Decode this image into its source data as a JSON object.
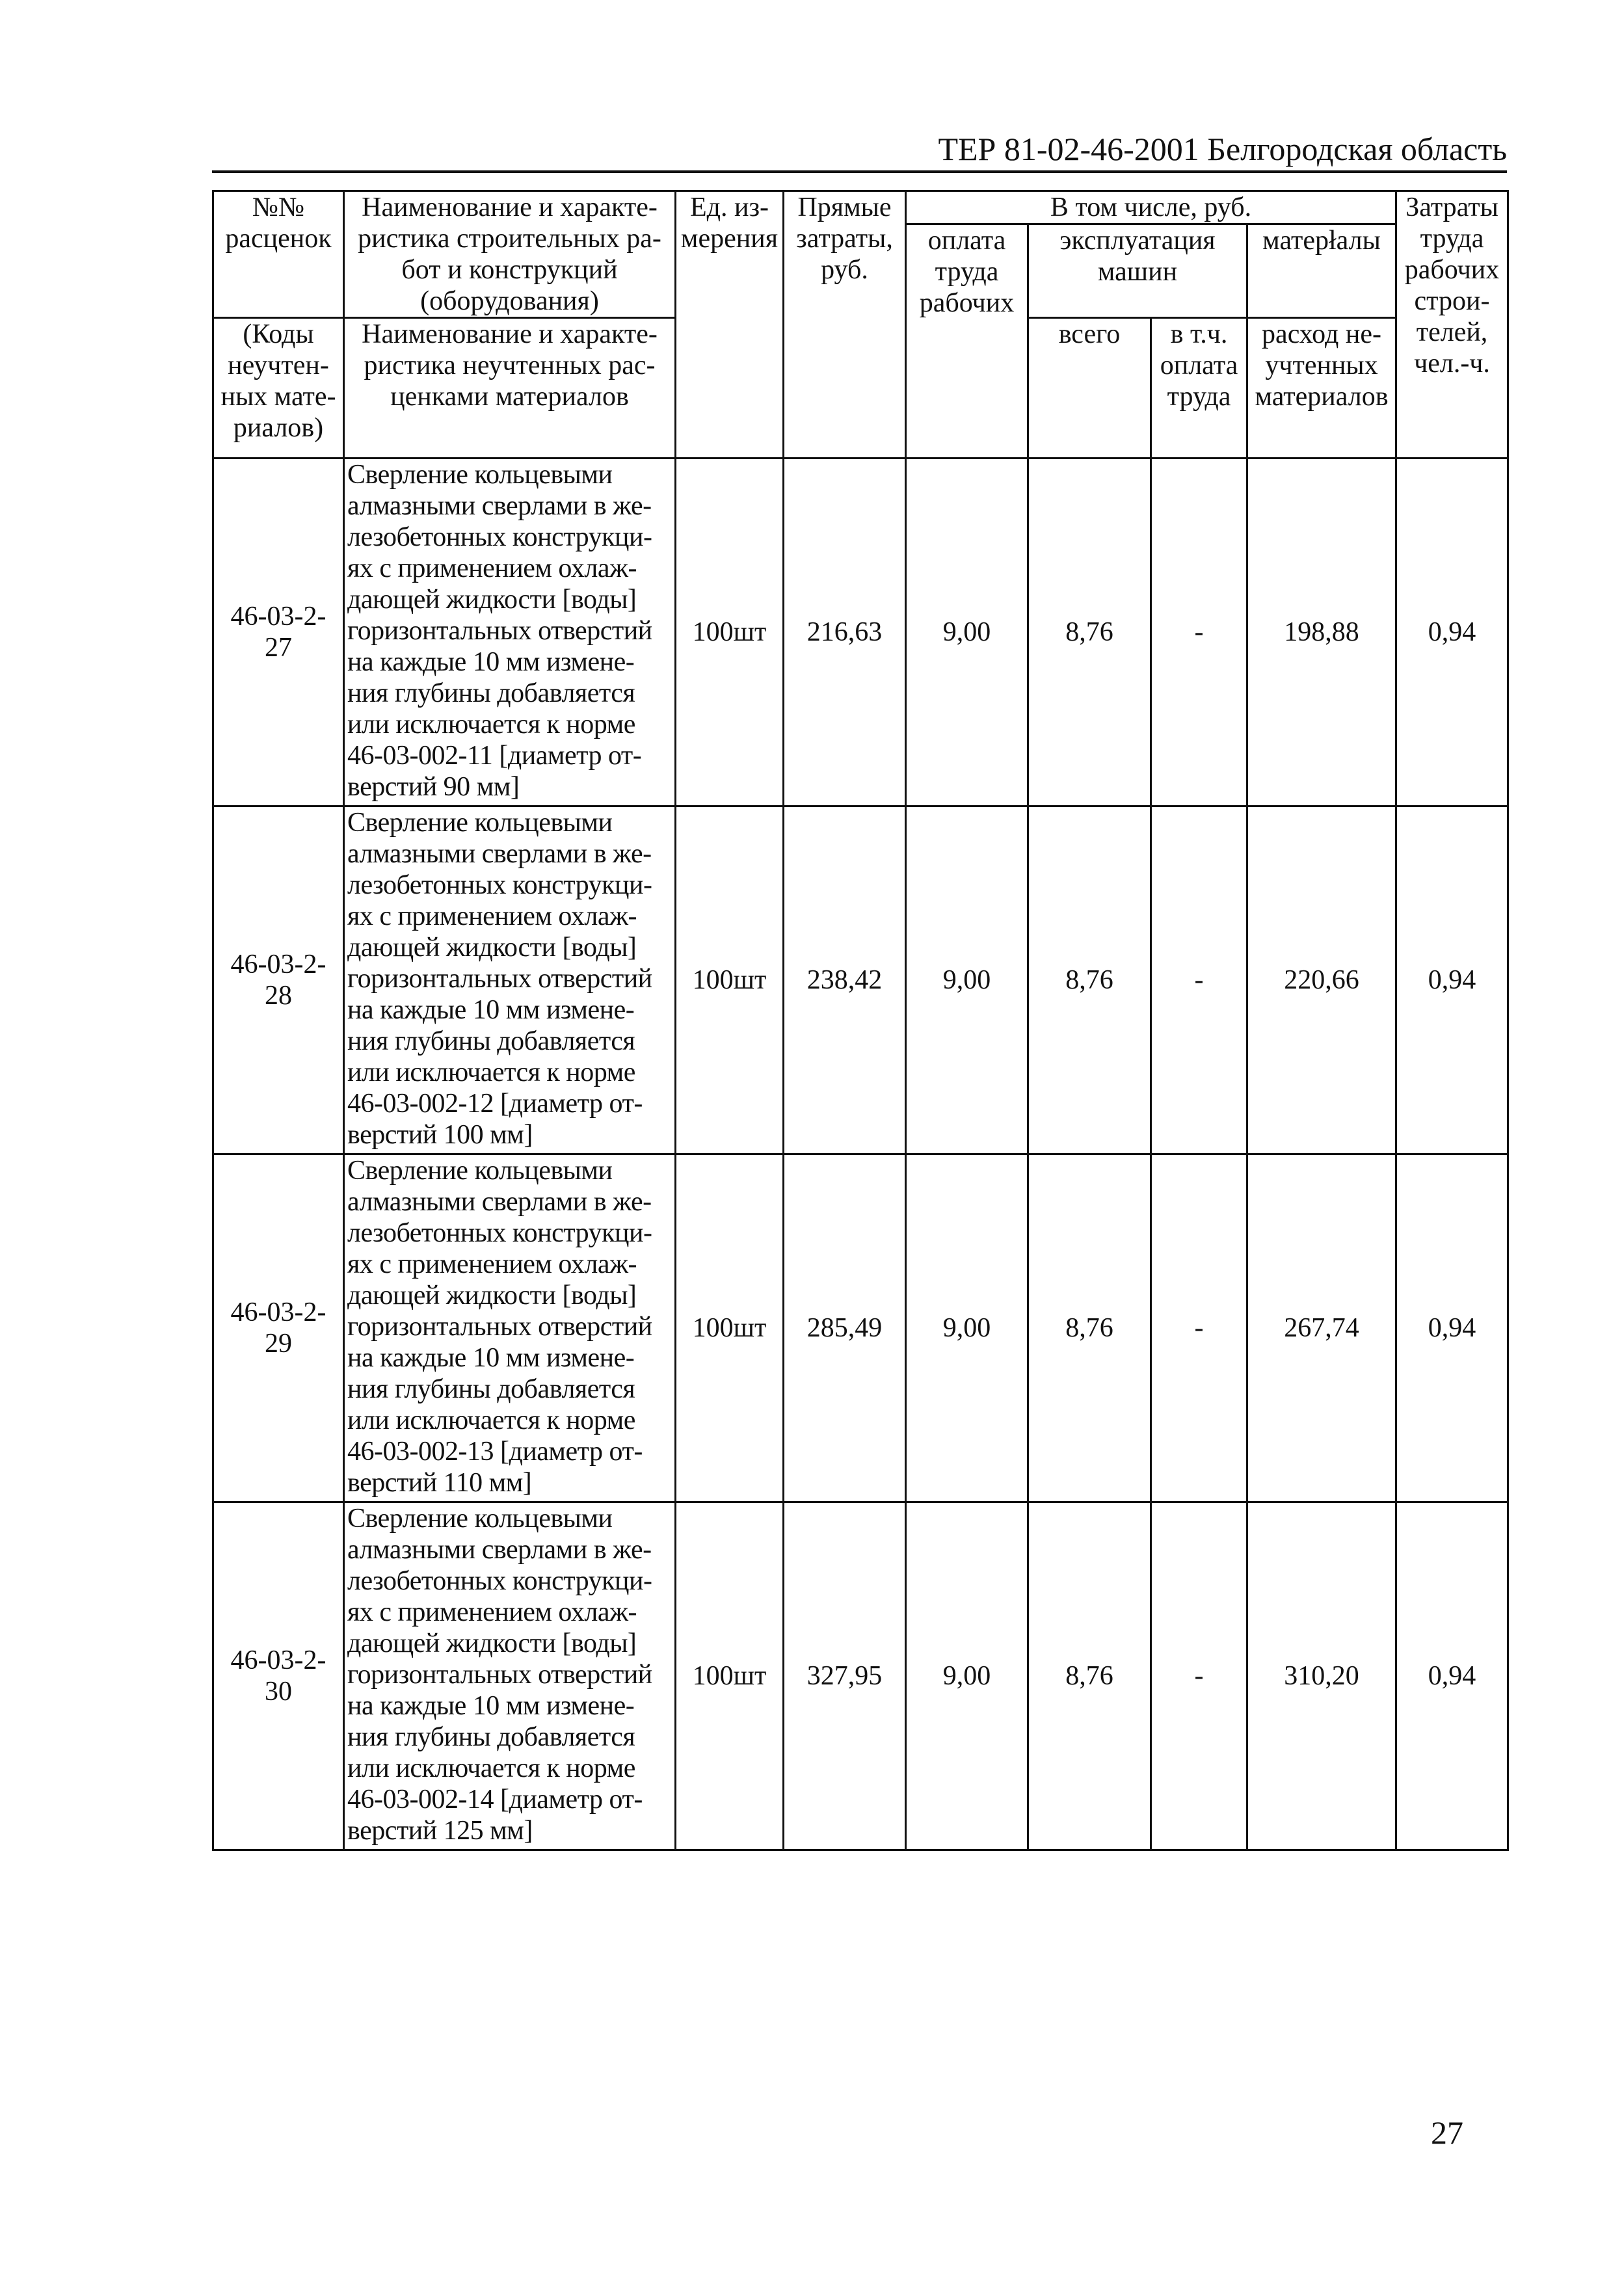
{
  "header": {
    "title": "ТЕР 81-02-46-2001  Белгородская область"
  },
  "table": {
    "head": {
      "num": "№№\nрасценок",
      "name": "Наименование и характе-\nристика строительных ра-\nбот и конструкций\n(оборудования)",
      "unit": "Ед. из-\nмерения",
      "direct": "Прямые\nзатраты,\nруб.",
      "incl": "В том числе, руб.",
      "labor": "Затраты\nтруда\nрабочих\nстрои-\nтелей,\nчел.-ч.",
      "wages": "оплата\nтруда\nрабочих",
      "machines": "эксплуатация\nмашин",
      "materials": "матерłалы",
      "codes": "(Коды\nнеучтен-\nных мате-\nриалов)",
      "name2": "Наименование и характе-\nристика неучтенных рас-\nценками материалов",
      "total": "всего",
      "incl_wages": "в т.ч.\nоплата\nтруда",
      "unaccounted": "расход не-\nучтенных\nматериалов"
    },
    "rows": [
      {
        "code": "46-03-2-\n27",
        "desc": "Сверление кольцевыми\nалмазными сверлами в же-\nлезобетонных конструкци-\nях с применением охлаж-\nдающей жидкости [воды]\nгоризонтальных отверстий\nна каждые 10 мм измене-\nния глубины добавляется\nили исключается к норме\n46-03-002-11 [диаметр от-\nверстий 90 мм]",
        "unit": "100шт",
        "direct": "216,63",
        "wages": "9,00",
        "machines": "8,76",
        "mach_wages": "-",
        "materials": "198,88",
        "labor": "0,94"
      },
      {
        "code": "46-03-2-\n28",
        "desc": "Сверление кольцевыми\nалмазными сверлами в же-\nлезобетонных конструкци-\nях с применением охлаж-\nдающей жидкости [воды]\nгоризонтальных отверстий\nна каждые 10 мм измене-\nния глубины добавляется\nили исключается к норме\n46-03-002-12 [диаметр от-\nверстий 100 мм]",
        "unit": "100шт",
        "direct": "238,42",
        "wages": "9,00",
        "machines": "8,76",
        "mach_wages": "-",
        "materials": "220,66",
        "labor": "0,94"
      },
      {
        "code": "46-03-2-\n29",
        "desc": "Сверление кольцевыми\nалмазными сверлами в же-\nлезобетонных конструкци-\nях с применением охлаж-\nдающей жидкости [воды]\nгоризонтальных отверстий\nна каждые 10 мм измене-\nния глубины добавляется\nили исключается к норме\n46-03-002-13 [диаметр от-\nверстий 110 мм]",
        "unit": "100шт",
        "direct": "285,49",
        "wages": "9,00",
        "machines": "8,76",
        "mach_wages": "-",
        "materials": "267,74",
        "labor": "0,94"
      },
      {
        "code": "46-03-2-\n30",
        "desc": "Сверление кольцевыми\nалмазными сверлами в же-\nлезобетонных конструкци-\nях с применением охлаж-\nдающей жидкости [воды]\nгоризонтальных отверстий\nна каждые 10 мм измене-\nния глубины добавляется\nили исключается к норме\n46-03-002-14 [диаметр от-\nверстий 125 мм]",
        "unit": "100шт",
        "direct": "327,95",
        "wages": "9,00",
        "machines": "8,76",
        "mach_wages": "-",
        "materials": "310,20",
        "labor": "0,94"
      }
    ]
  },
  "footer": {
    "page_number": "27"
  }
}
